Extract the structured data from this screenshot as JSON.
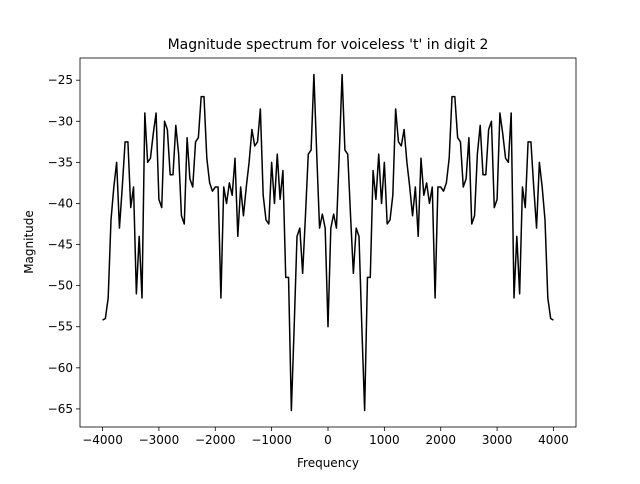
{
  "chart_data": {
    "type": "line",
    "title": "Magnitude spectrum for voiceless 't' in digit 2",
    "x_label": "Frequency",
    "y_label": "Magnitude",
    "x": [
      -4000,
      -3950,
      -3900,
      -3850,
      -3800,
      -3750,
      -3700,
      -3650,
      -3600,
      -3550,
      -3500,
      -3450,
      -3400,
      -3350,
      -3300,
      -3250,
      -3200,
      -3150,
      -3100,
      -3050,
      -3000,
      -2950,
      -2900,
      -2850,
      -2800,
      -2750,
      -2700,
      -2650,
      -2600,
      -2550,
      -2500,
      -2450,
      -2400,
      -2350,
      -2300,
      -2250,
      -2200,
      -2150,
      -2100,
      -2050,
      -2000,
      -1950,
      -1900,
      -1850,
      -1800,
      -1750,
      -1700,
      -1650,
      -1600,
      -1550,
      -1500,
      -1450,
      -1400,
      -1350,
      -1300,
      -1250,
      -1200,
      -1150,
      -1100,
      -1050,
      -1000,
      -950,
      -900,
      -850,
      -800,
      -750,
      -700,
      -650,
      -600,
      -550,
      -500,
      -450,
      -400,
      -350,
      -300,
      -250,
      -200,
      -150,
      -100,
      -50,
      0,
      50,
      100,
      150,
      200,
      250,
      300,
      350,
      400,
      450,
      500,
      550,
      600,
      650,
      700,
      750,
      800,
      850,
      900,
      950,
      1000,
      1050,
      1100,
      1150,
      1200,
      1250,
      1300,
      1350,
      1400,
      1450,
      1500,
      1550,
      1600,
      1650,
      1700,
      1750,
      1800,
      1850,
      1900,
      1950,
      2000,
      2050,
      2100,
      2150,
      2200,
      2250,
      2300,
      2350,
      2400,
      2450,
      2500,
      2550,
      2600,
      2650,
      2700,
      2750,
      2800,
      2850,
      2900,
      2950,
      3000,
      3050,
      3100,
      3150,
      3200,
      3250,
      3300,
      3350,
      3400,
      3450,
      3500,
      3550,
      3600,
      3650,
      3700,
      3750,
      3800,
      3850,
      3900,
      3950,
      4000
    ],
    "series": [
      {
        "color": "#000000",
        "values": [
          -54.2,
          -54,
          -51.5,
          -42,
          -38,
          -35,
          -43,
          -38,
          -32.5,
          -32.5,
          -40.5,
          -38,
          -51,
          -44,
          -51.5,
          -29,
          -35,
          -34.5,
          -31.5,
          -29,
          -39.5,
          -40.5,
          -30,
          -31,
          -36.5,
          -36.5,
          -30.5,
          -34,
          -41.5,
          -42.5,
          -32,
          -37,
          -38,
          -32.5,
          -32,
          -27,
          -27,
          -34.5,
          -37.5,
          -38.5,
          -38,
          -38,
          -51.5,
          -38,
          -40,
          -37.5,
          -39,
          -34.5,
          -44,
          -38,
          -41.5,
          -38,
          -35,
          -31,
          -33,
          -32.5,
          -28.5,
          -39,
          -42,
          -42.5,
          -35,
          -40,
          -34,
          -39.5,
          -36,
          -49,
          -49,
          -65.2,
          -55,
          -44,
          -43,
          -48.5,
          -41.5,
          -34,
          -33.5,
          -24.3,
          -34,
          -43,
          -41.3,
          -43,
          -55,
          -43,
          -41.3,
          -43,
          -34,
          -24.3,
          -33.5,
          -34,
          -41.5,
          -48.5,
          -43,
          -44,
          -55,
          -65.2,
          -49,
          -49,
          -36,
          -39.5,
          -34,
          -40,
          -35,
          -42.5,
          -42,
          -39,
          -28.5,
          -32.5,
          -33,
          -31,
          -35,
          -38,
          -41.5,
          -38,
          -44,
          -34.5,
          -39,
          -37.5,
          -40,
          -38,
          -51.5,
          -38,
          -38,
          -38.5,
          -37.5,
          -34.5,
          -27,
          -27,
          -32,
          -32.5,
          -38,
          -37,
          -32,
          -42.5,
          -41.5,
          -34,
          -30.5,
          -36.5,
          -36.5,
          -31,
          -30,
          -40.5,
          -39.5,
          -29,
          -31.5,
          -34.5,
          -35,
          -29,
          -51.5,
          -44,
          -51,
          -38,
          -40.5,
          -32.5,
          -32.5,
          -38,
          -43,
          -35,
          -38,
          -42,
          -51.5,
          -54,
          -54.2
        ]
      }
    ],
    "xlim": [
      -4400,
      4400
    ],
    "ylim": [
      -67.2,
      -22.3
    ],
    "xticks": [
      {
        "value": -4000,
        "label": "−4000"
      },
      {
        "value": -3000,
        "label": "−3000"
      },
      {
        "value": -2000,
        "label": "−2000"
      },
      {
        "value": -1000,
        "label": "−1000"
      },
      0,
      1000,
      2000,
      3000,
      4000
    ],
    "yticks": [
      {
        "value": -65,
        "label": "−65"
      },
      {
        "value": -60,
        "label": "−60"
      },
      {
        "value": -55,
        "label": "−55"
      },
      {
        "value": -50,
        "label": "−50"
      },
      {
        "value": -45,
        "label": "−45"
      },
      {
        "value": -40,
        "label": "−40"
      },
      {
        "value": -35,
        "label": "−35"
      },
      {
        "value": -30,
        "label": "−30"
      },
      {
        "value": -25,
        "label": "−25"
      }
    ],
    "grid": false
  }
}
